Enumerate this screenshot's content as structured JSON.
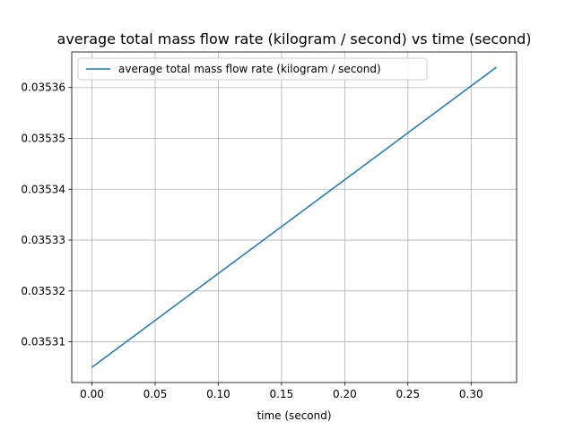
{
  "chart_data": {
    "type": "line",
    "title": "average total mass flow rate (kilogram / second) vs time (second)",
    "xlabel": "time (second)",
    "ylabel": "",
    "xlim": [
      -0.016,
      0.336
    ],
    "ylim": [
      0.035302,
      0.035367
    ],
    "x_ticks": [
      0.0,
      0.05,
      0.1,
      0.15,
      0.2,
      0.25,
      0.3
    ],
    "x_tick_labels": [
      "0.00",
      "0.05",
      "0.10",
      "0.15",
      "0.20",
      "0.25",
      "0.30"
    ],
    "y_ticks": [
      0.03531,
      0.03532,
      0.03533,
      0.03534,
      0.03535,
      0.03536
    ],
    "y_tick_labels": [
      "0.03531",
      "0.03532",
      "0.03533",
      "0.03534",
      "0.03535",
      "0.03536"
    ],
    "grid": true,
    "legend_position": "top-left",
    "series": [
      {
        "name": "average total mass flow rate (kilogram / second)",
        "color": "#1f77b4",
        "x": [
          0.0,
          0.32
        ],
        "y": [
          0.035305,
          0.035364
        ]
      }
    ]
  }
}
